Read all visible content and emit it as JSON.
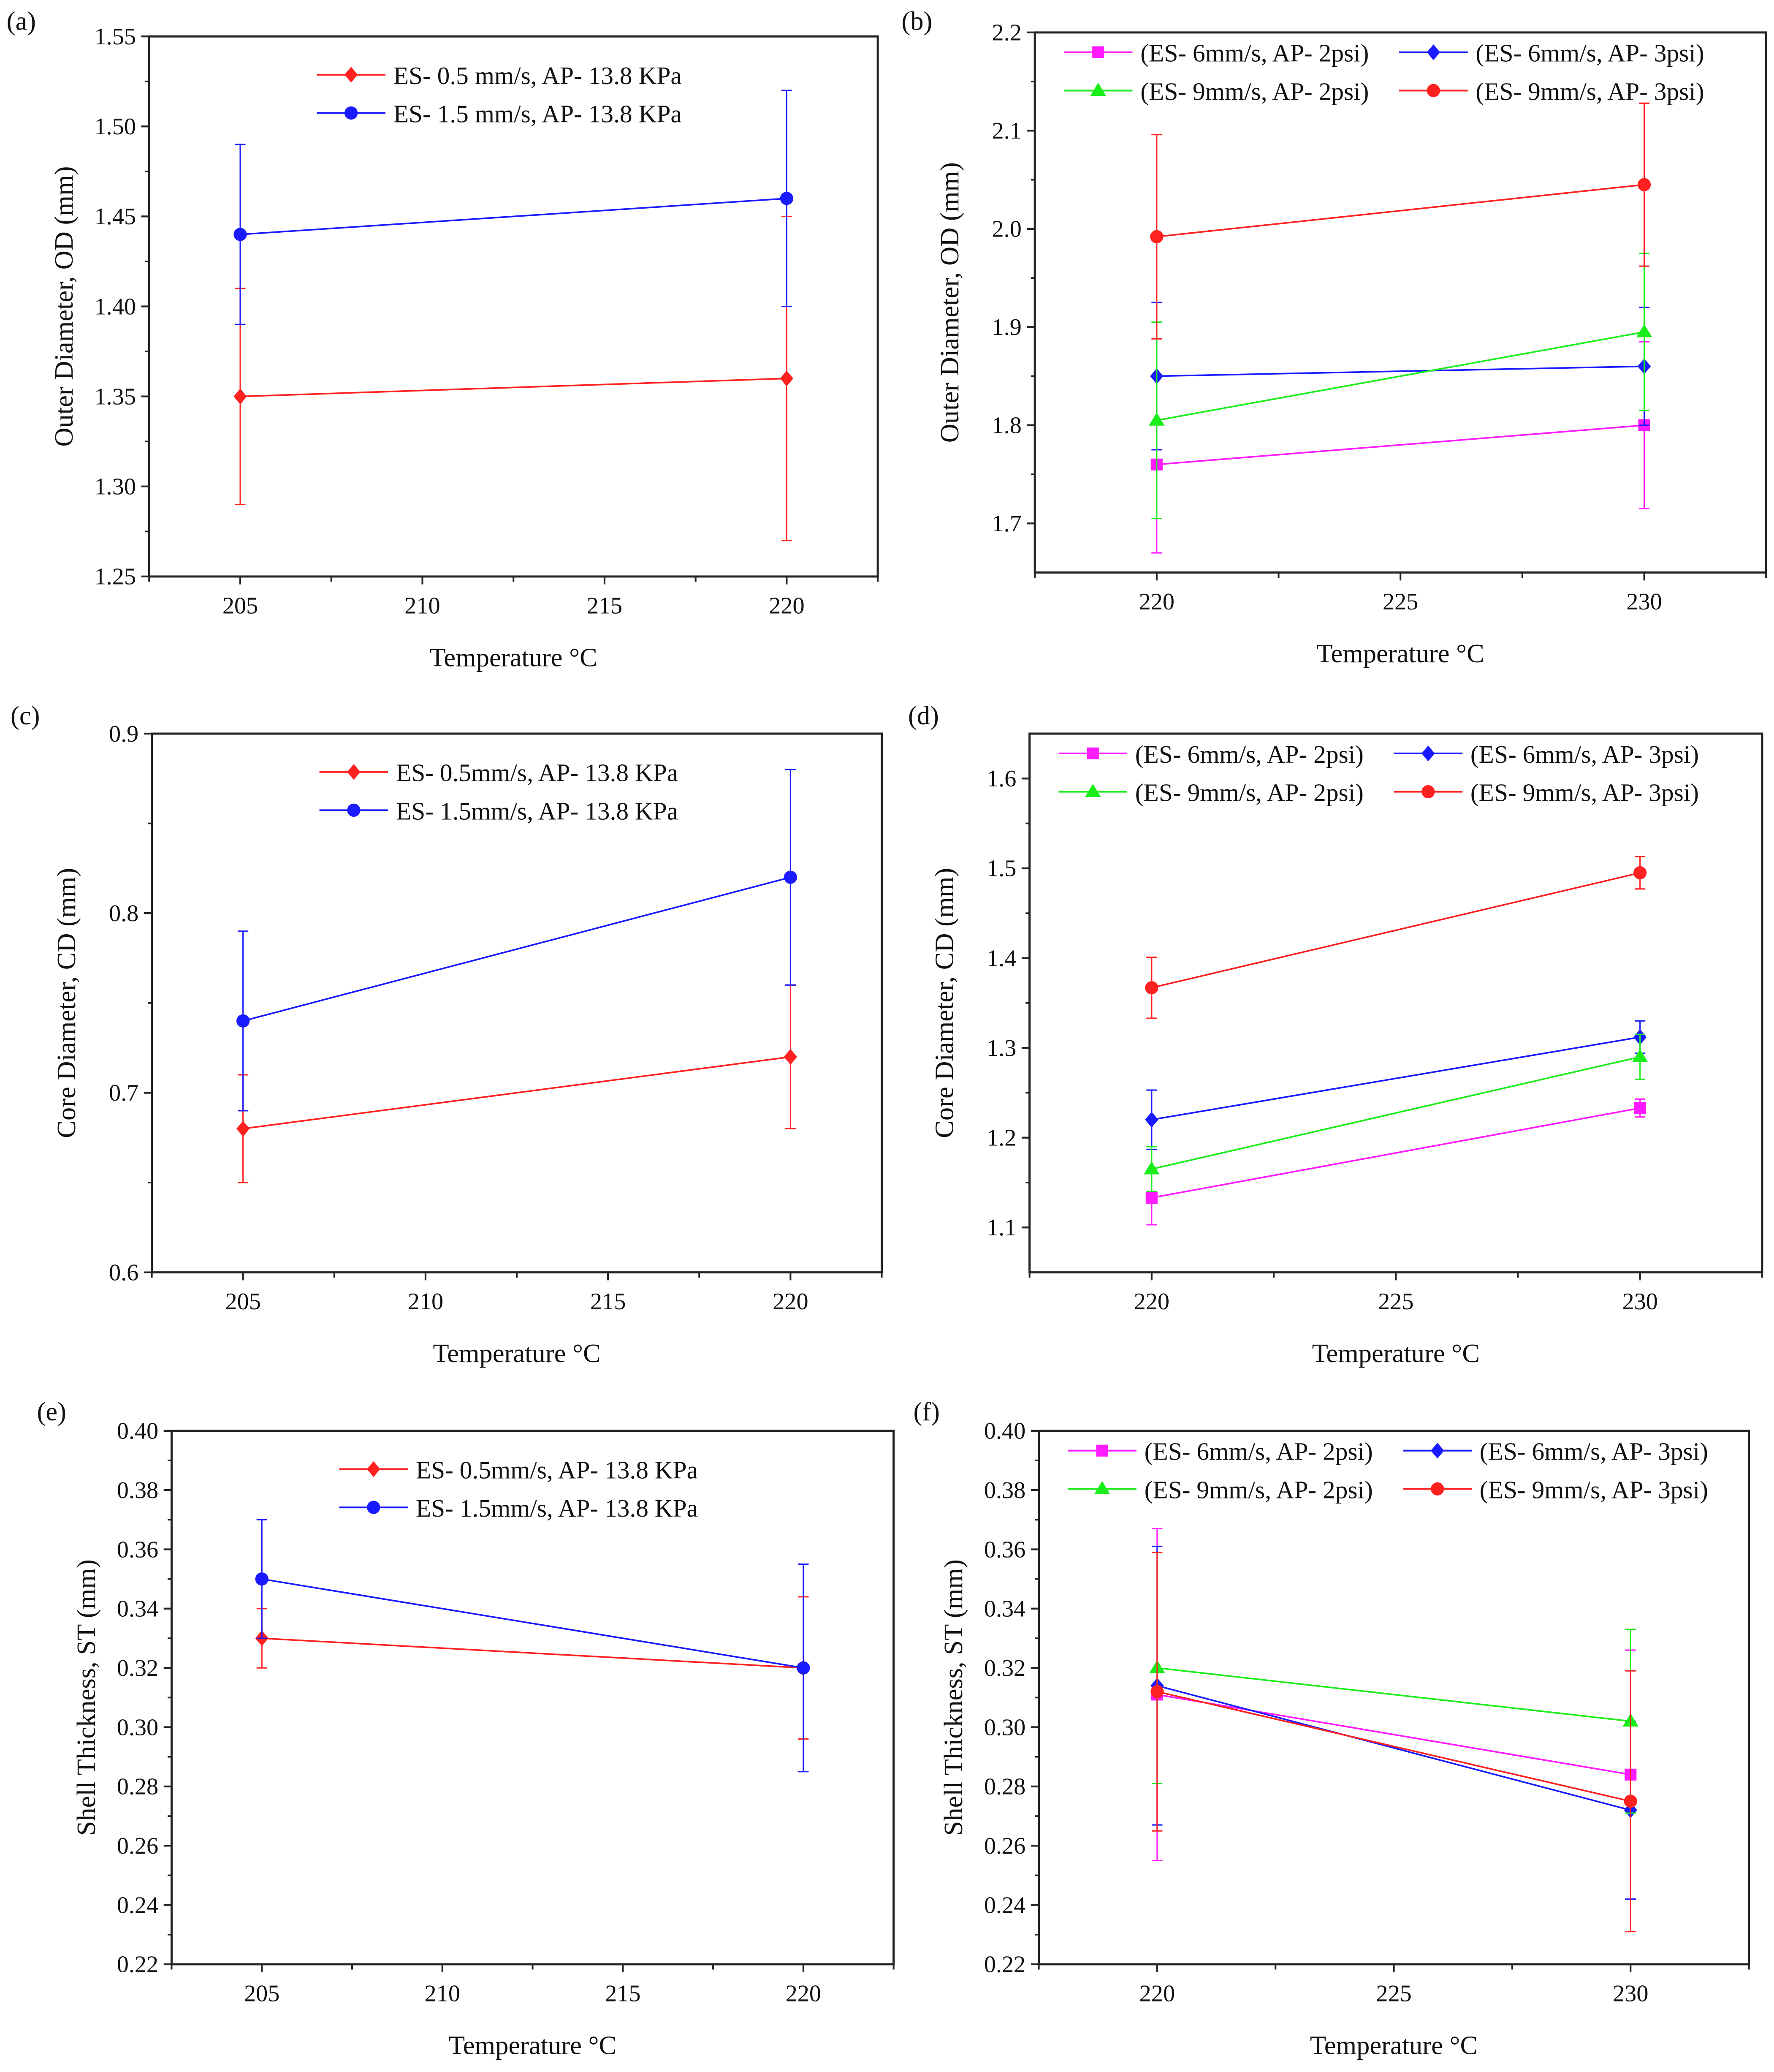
{
  "colors": {
    "red": "#ff2020",
    "blue": "#1a1aff",
    "magenta": "#ff1aff",
    "green": "#1aee1a"
  },
  "chart_data": [
    {
      "panel": "(a)",
      "type": "line",
      "xlabel": "Temperature °C",
      "ylabel": "Outer Diameter, OD (mm)",
      "xlim": [
        202.5,
        222.5
      ],
      "ylim": [
        1.25,
        1.55
      ],
      "xticks": [
        "205",
        "210",
        "215",
        "220"
      ],
      "yticks": [
        "1.25",
        "1.30",
        "1.35",
        "1.40",
        "1.45",
        "1.50",
        "1.55"
      ],
      "legend_cols": 1,
      "series": [
        {
          "name": "ES- 0.5 mm/s, AP- 13.8 KPa",
          "color": "red",
          "marker": "diamond",
          "x": [
            205,
            220
          ],
          "y": [
            1.35,
            1.36
          ],
          "err": [
            0.06,
            0.09
          ]
        },
        {
          "name": "ES- 1.5 mm/s, AP- 13.8 KPa",
          "color": "blue",
          "marker": "circle",
          "x": [
            205,
            220
          ],
          "y": [
            1.44,
            1.46
          ],
          "err": [
            0.05,
            0.06
          ]
        }
      ]
    },
    {
      "panel": "(b)",
      "type": "line",
      "xlabel": "Temperature °C",
      "ylabel": "Outer Diameter, OD (mm)",
      "xlim": [
        217.5,
        232.5
      ],
      "ylim": [
        1.65,
        2.2
      ],
      "xticks": [
        "220",
        "225",
        "230"
      ],
      "yticks": [
        "1.7",
        "1.8",
        "1.9",
        "2.0",
        "2.1",
        "2.2"
      ],
      "legend_cols": 2,
      "series": [
        {
          "name": "(ES- 6mm/s, AP- 2psi)",
          "color": "magenta",
          "marker": "square",
          "x": [
            220,
            230
          ],
          "y": [
            1.76,
            1.8
          ],
          "err": [
            0.09,
            0.085
          ]
        },
        {
          "name": "(ES- 6mm/s, AP- 3psi)",
          "color": "blue",
          "marker": "diamond",
          "x": [
            220,
            230
          ],
          "y": [
            1.85,
            1.86
          ],
          "err": [
            0.075,
            0.06
          ]
        },
        {
          "name": "(ES- 9mm/s, AP- 2psi)",
          "color": "green",
          "marker": "triangle",
          "x": [
            220,
            230
          ],
          "y": [
            1.805,
            1.895
          ],
          "err": [
            0.1,
            0.08
          ]
        },
        {
          "name": "(ES- 9mm/s, AP- 3psi)",
          "color": "red",
          "marker": "circle",
          "x": [
            220,
            230
          ],
          "y": [
            1.992,
            2.045
          ],
          "err": [
            0.104,
            0.083
          ]
        }
      ]
    },
    {
      "panel": "(c)",
      "type": "line",
      "xlabel": "Temperature °C",
      "ylabel": "Core Diameter, CD (mm)",
      "xlim": [
        202.5,
        222.5
      ],
      "ylim": [
        0.6,
        0.9
      ],
      "xticks": [
        "205",
        "210",
        "215",
        "220"
      ],
      "yticks": [
        "0.6",
        "0.7",
        "0.8",
        "0.9"
      ],
      "legend_cols": 1,
      "series": [
        {
          "name": "ES- 0.5mm/s, AP- 13.8 KPa",
          "color": "red",
          "marker": "diamond",
          "x": [
            205,
            220
          ],
          "y": [
            0.68,
            0.72
          ],
          "err": [
            0.03,
            0.04
          ]
        },
        {
          "name": "ES- 1.5mm/s, AP- 13.8 KPa",
          "color": "blue",
          "marker": "circle",
          "x": [
            205,
            220
          ],
          "y": [
            0.74,
            0.82
          ],
          "err": [
            0.05,
            0.06
          ]
        }
      ]
    },
    {
      "panel": "(d)",
      "type": "line",
      "xlabel": "Temperature °C",
      "ylabel": "Core Diameter, CD (mm)",
      "xlim": [
        217.5,
        232.5
      ],
      "ylim": [
        1.05,
        1.65
      ],
      "xticks": [
        "220",
        "225",
        "230"
      ],
      "yticks": [
        "1.1",
        "1.2",
        "1.3",
        "1.4",
        "1.5",
        "1.6"
      ],
      "legend_cols": 2,
      "series": [
        {
          "name": "(ES- 6mm/s, AP- 2psi)",
          "color": "magenta",
          "marker": "square",
          "x": [
            220,
            230
          ],
          "y": [
            1.133,
            1.233
          ],
          "err": [
            0.03,
            0.01
          ]
        },
        {
          "name": "(ES- 6mm/s, AP- 3psi)",
          "color": "blue",
          "marker": "diamond",
          "x": [
            220,
            230
          ],
          "y": [
            1.22,
            1.312
          ],
          "err": [
            0.033,
            0.018
          ]
        },
        {
          "name": "(ES- 9mm/s, AP- 2psi)",
          "color": "green",
          "marker": "triangle",
          "x": [
            220,
            230
          ],
          "y": [
            1.165,
            1.29
          ],
          "err": [
            0.025,
            0.025
          ]
        },
        {
          "name": "(ES- 9mm/s, AP- 3psi)",
          "color": "red",
          "marker": "circle",
          "x": [
            220,
            230
          ],
          "y": [
            1.367,
            1.495
          ],
          "err": [
            0.034,
            0.018
          ]
        }
      ]
    },
    {
      "panel": "(e)",
      "type": "line",
      "xlabel": "Temperature °C",
      "ylabel": "Shell Thickness, ST (mm)",
      "xlim": [
        202.5,
        222.5
      ],
      "ylim": [
        0.22,
        0.4
      ],
      "xticks": [
        "205",
        "210",
        "215",
        "220"
      ],
      "yticks": [
        "0.22",
        "0.24",
        "0.26",
        "0.28",
        "0.30",
        "0.32",
        "0.34",
        "0.36",
        "0.38",
        "0.40"
      ],
      "legend_cols": 1,
      "series": [
        {
          "name": "ES- 0.5mm/s, AP- 13.8 KPa",
          "color": "red",
          "marker": "diamond",
          "x": [
            205,
            220
          ],
          "y": [
            0.33,
            0.32
          ],
          "err": [
            0.01,
            0.024
          ]
        },
        {
          "name": "ES- 1.5mm/s, AP- 13.8 KPa",
          "color": "blue",
          "marker": "circle",
          "x": [
            205,
            220
          ],
          "y": [
            0.35,
            0.32
          ],
          "err": [
            0.02,
            0.035
          ]
        }
      ]
    },
    {
      "panel": "(f)",
      "type": "line",
      "xlabel": "Temperature °C",
      "ylabel": "Shell Thickness, ST (mm)",
      "xlim": [
        217.5,
        232.5
      ],
      "ylim": [
        0.22,
        0.4
      ],
      "xticks": [
        "220",
        "225",
        "230"
      ],
      "yticks": [
        "0.22",
        "0.24",
        "0.26",
        "0.28",
        "0.30",
        "0.32",
        "0.34",
        "0.36",
        "0.38",
        "0.40"
      ],
      "legend_cols": 2,
      "series": [
        {
          "name": "(ES- 6mm/s, AP- 2psi)",
          "color": "magenta",
          "marker": "square",
          "x": [
            220,
            230
          ],
          "y": [
            0.311,
            0.284
          ],
          "err": [
            0.056,
            0.042
          ]
        },
        {
          "name": "(ES- 6mm/s, AP- 3psi)",
          "color": "blue",
          "marker": "diamond",
          "x": [
            220,
            230
          ],
          "y": [
            0.314,
            0.272
          ],
          "err": [
            0.047,
            0.03
          ]
        },
        {
          "name": "(ES- 9mm/s, AP- 2psi)",
          "color": "green",
          "marker": "triangle",
          "x": [
            220,
            230
          ],
          "y": [
            0.32,
            0.302
          ],
          "err": [
            0.039,
            0.031
          ]
        },
        {
          "name": "(ES- 9mm/s, AP- 3psi)",
          "color": "red",
          "marker": "circle",
          "x": [
            220,
            230
          ],
          "y": [
            0.312,
            0.275
          ],
          "err": [
            0.047,
            0.044
          ]
        }
      ]
    }
  ]
}
